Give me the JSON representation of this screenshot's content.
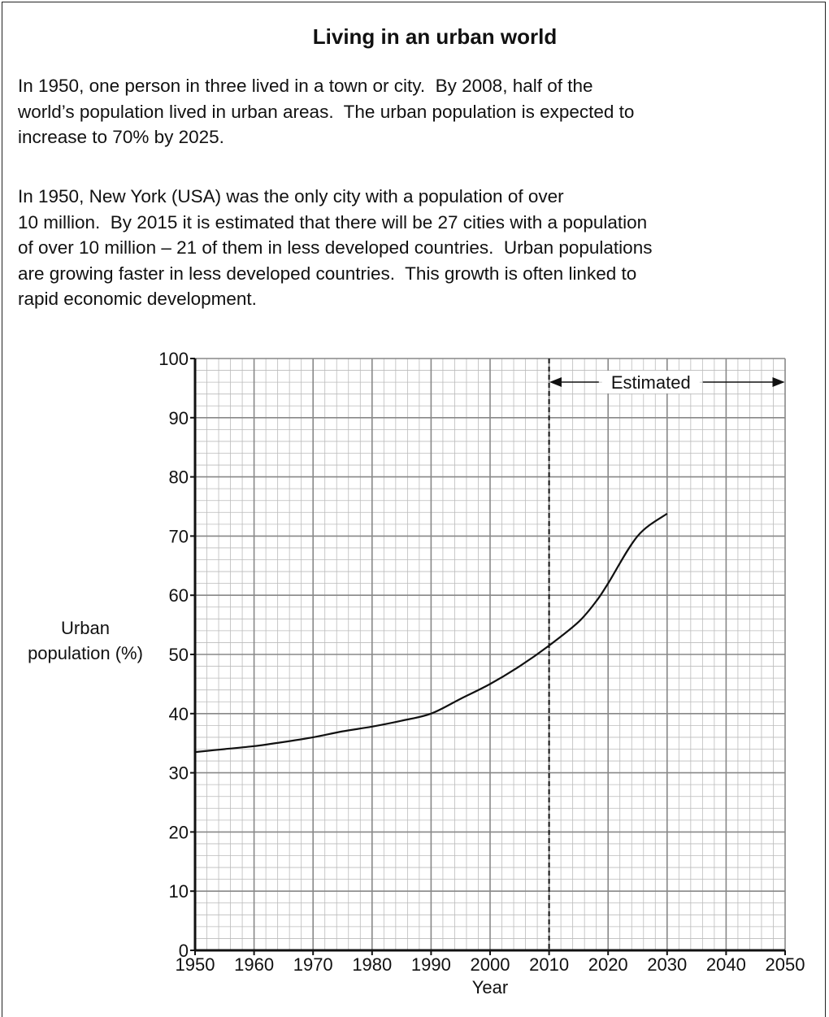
{
  "header": {
    "title": "Living in an urban world"
  },
  "paragraphs": [
    [
      "In 1950, one person in three lived in a town or city.  By 2008, half of the",
      "world’s population lived in urban areas.  The urban population is expected to",
      "increase to 70% by 2025."
    ],
    [
      "In 1950, New York (USA) was the only city with a population of over",
      "10 million.  By 2015 it is estimated that there will be 27 cities with a population",
      "of over 10 million – 21 of them in less developed countries.  Urban populations",
      "are growing faster in less developed countries.  This growth is often linked to",
      "rapid economic development."
    ]
  ],
  "chart_data": {
    "type": "line",
    "x_label": "Year",
    "y_label": "Urban population (%)",
    "x": [
      1950,
      1955,
      1960,
      1965,
      1970,
      1975,
      1980,
      1985,
      1990,
      1995,
      2000,
      2005,
      2010,
      2015,
      2018,
      2020,
      2025,
      2030
    ],
    "values": [
      33.5,
      34,
      34.5,
      35.2,
      36,
      37,
      37.8,
      38.8,
      40,
      42.5,
      45,
      48,
      51.5,
      55.5,
      59,
      62,
      70,
      73.8
    ],
    "color": "#111111",
    "xlim": [
      1950,
      2050
    ],
    "ylim": [
      0,
      100
    ],
    "xticks": [
      1950,
      1960,
      1970,
      1980,
      1990,
      2000,
      2010,
      2020,
      2030,
      2040,
      2050
    ],
    "yticks": [
      0,
      10,
      20,
      30,
      40,
      50,
      60,
      70,
      80,
      90,
      100
    ],
    "grid": true,
    "minor_grid": true,
    "annotation": {
      "text": "Estimated",
      "x_start": 2010,
      "x_end": 2050
    }
  }
}
